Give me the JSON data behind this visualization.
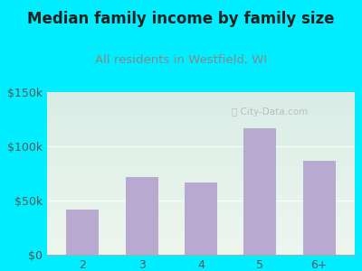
{
  "title": "Median family income by family size",
  "subtitle": "All residents in Westfield, WI",
  "categories": [
    "2",
    "3",
    "4",
    "5",
    "6+"
  ],
  "values": [
    42000,
    72000,
    67000,
    117000,
    87000
  ],
  "bar_color": "#b8a9d0",
  "background_outer": "#00eeff",
  "background_inner_topleft": "#d8ede6",
  "background_inner_bottomright": "#eef6ee",
  "title_color": "#222222",
  "subtitle_color": "#888888",
  "tick_color": "#555555",
  "grid_color": "#ccddcc",
  "ylim": [
    0,
    150000
  ],
  "yticks": [
    0,
    50000,
    100000,
    150000
  ],
  "ytick_labels": [
    "$0",
    "$50k",
    "$100k",
    "$150k"
  ],
  "watermark": "⌕ City-Data.com",
  "title_fontsize": 12,
  "subtitle_fontsize": 9.5,
  "tick_fontsize": 9
}
